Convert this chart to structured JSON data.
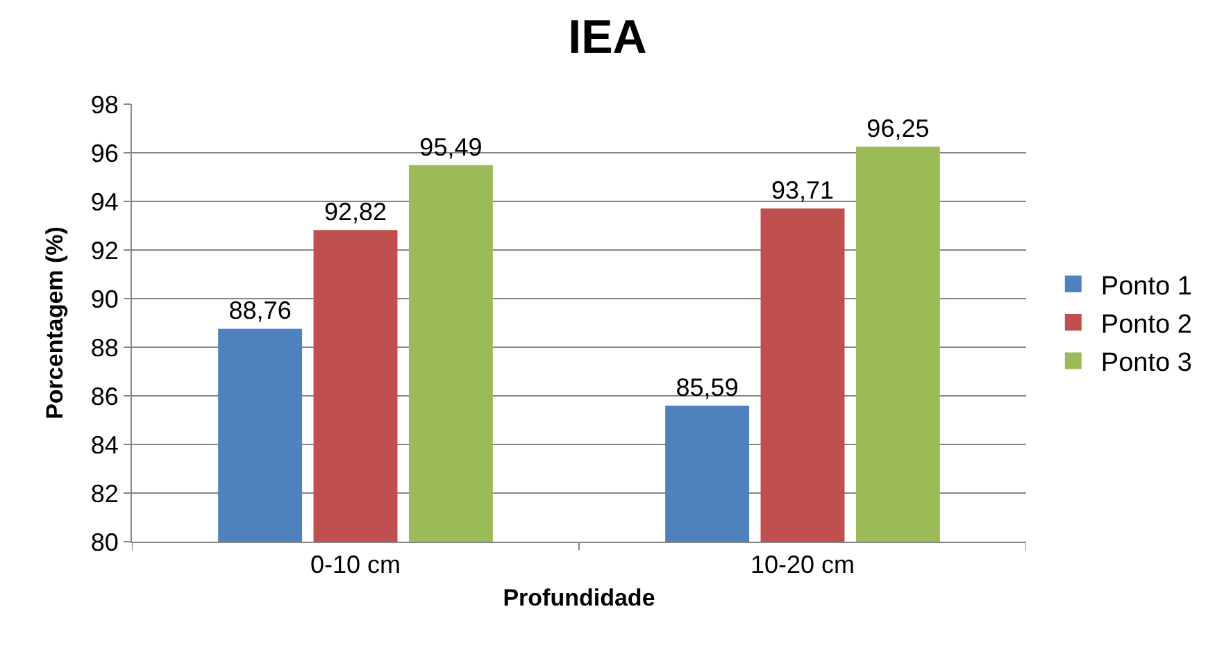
{
  "chart_data": {
    "type": "bar",
    "title": "IEA",
    "xlabel": "Profundidade",
    "ylabel": "Porcentagem (%)",
    "categories": [
      "0-10 cm",
      "10-20 cm"
    ],
    "series": [
      {
        "name": "Ponto 1",
        "color": "#4f81bd",
        "values": [
          88.76,
          85.59
        ],
        "value_labels": [
          "88,76",
          "85,59"
        ]
      },
      {
        "name": "Ponto 2",
        "color": "#c0504d",
        "values": [
          92.82,
          93.71
        ],
        "value_labels": [
          "92,82",
          "93,71"
        ]
      },
      {
        "name": "Ponto 3",
        "color": "#9bbb59",
        "values": [
          95.49,
          96.25
        ],
        "value_labels": [
          "95,49",
          "96,25"
        ]
      }
    ],
    "ylim": [
      80,
      98
    ],
    "yticks": [
      80,
      82,
      84,
      86,
      88,
      90,
      92,
      94,
      96,
      98
    ],
    "grid": "y",
    "legend": "right"
  }
}
